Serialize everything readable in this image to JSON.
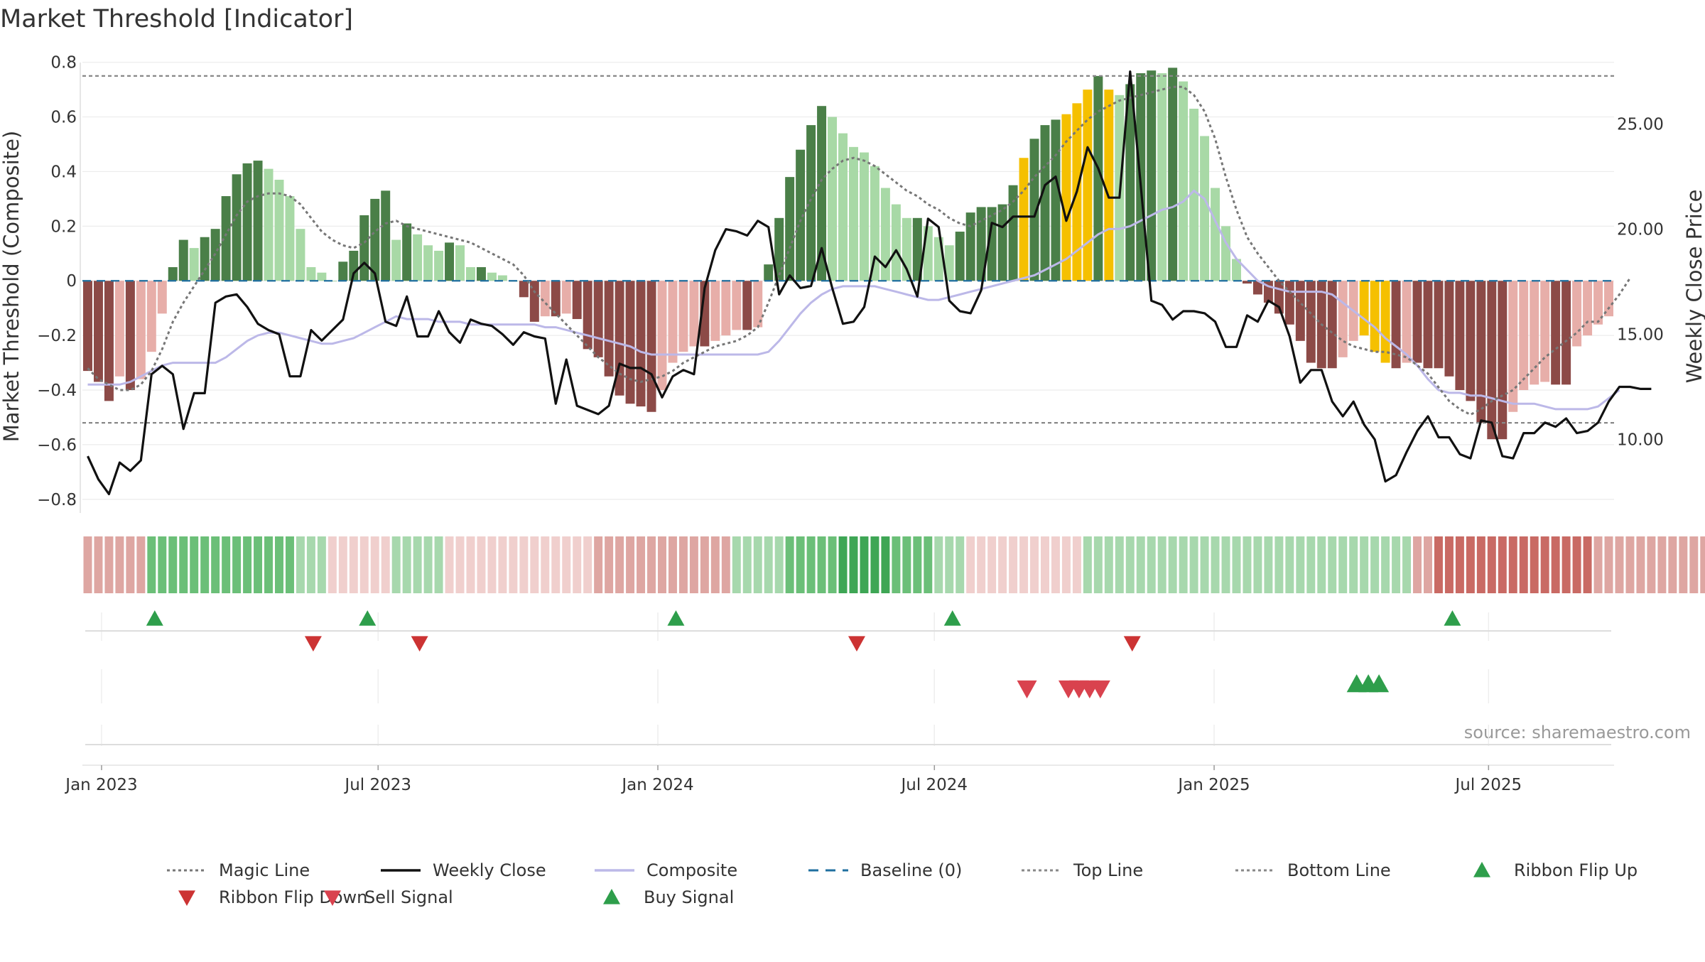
{
  "chart_data": {
    "type": "bar",
    "title": "Market Threshold [Indicator]",
    "source": "source: sharemaestro.com",
    "y_left": {
      "label": "Market Threshold (Composite)",
      "range": [
        -0.85,
        0.82
      ],
      "ticks": [
        0.8,
        0.6,
        0.4,
        0.2,
        0,
        -0.2,
        -0.4,
        -0.6,
        -0.8
      ],
      "tick_labels": [
        "0.8",
        "0.6",
        "0.4",
        "0.2",
        "0",
        "−0.2",
        "−0.4",
        "−0.6",
        "−0.8"
      ]
    },
    "y_right": {
      "label": "Weekly Close Price",
      "range": [
        6.5,
        28.2
      ],
      "ticks": [
        25,
        20,
        15,
        10
      ],
      "tick_labels": [
        "25.00",
        "20.00",
        "15.00",
        "10.00"
      ]
    },
    "x_ticks": [
      {
        "label": "Jan 2023",
        "week": 1.3
      },
      {
        "label": "Jul 2023",
        "week": 27.3
      },
      {
        "label": "Jan 2024",
        "week": 53.6
      },
      {
        "label": "Jul 2024",
        "week": 79.6
      },
      {
        "label": "Jan 2025",
        "week": 105.9
      },
      {
        "label": "Jul 2025",
        "week": 131.7
      }
    ],
    "week_count": 144,
    "top_line": 0.75,
    "bottom_line": -0.52,
    "colors": {
      "pos_strong": "#4a7f48",
      "pos_light": "#a8d9a6",
      "neg_strong": "#8c4a47",
      "neg_light": "#e7aea9",
      "extreme": "#f5c000",
      "close": "#111111",
      "magic": "#777777",
      "composite": "#bcb8e8",
      "baseline": "#1f6f9f",
      "ref": "#888888",
      "buy": "#2e9e4b",
      "sell": "#d9424e",
      "flip_up": "#2e9e4b",
      "flip_down": "#cc3333"
    },
    "composite_bars": [
      -0.33,
      -0.37,
      -0.44,
      -0.35,
      -0.4,
      -0.36,
      -0.26,
      -0.12,
      0.05,
      0.15,
      0.12,
      0.16,
      0.19,
      0.31,
      0.39,
      0.43,
      0.44,
      0.41,
      0.37,
      0.31,
      0.19,
      0.05,
      0.03,
      0.0,
      0.07,
      0.11,
      0.24,
      0.3,
      0.33,
      0.15,
      0.21,
      0.17,
      0.13,
      0.11,
      0.14,
      0.13,
      0.05,
      0.05,
      0.03,
      0.02,
      0.0,
      -0.06,
      -0.15,
      -0.13,
      -0.13,
      -0.12,
      -0.14,
      -0.25,
      -0.28,
      -0.35,
      -0.42,
      -0.45,
      -0.46,
      -0.48,
      -0.4,
      -0.3,
      -0.26,
      -0.24,
      -0.24,
      -0.22,
      -0.2,
      -0.18,
      -0.18,
      -0.17,
      0.06,
      0.23,
      0.38,
      0.48,
      0.57,
      0.64,
      0.6,
      0.54,
      0.49,
      0.47,
      0.42,
      0.34,
      0.28,
      0.23,
      0.23,
      0.2,
      0.16,
      0.13,
      0.18,
      0.25,
      0.27,
      0.27,
      0.28,
      0.35,
      0.45,
      0.52,
      0.57,
      0.59,
      0.61,
      0.65,
      0.7,
      0.75,
      0.7,
      0.68,
      0.72,
      0.76,
      0.77,
      0.76,
      0.78,
      0.73,
      0.63,
      0.53,
      0.34,
      0.2,
      0.08,
      -0.01,
      -0.05,
      -0.08,
      -0.12,
      -0.16,
      -0.22,
      -0.3,
      -0.32,
      -0.32,
      -0.28,
      -0.22,
      -0.2,
      -0.26,
      -0.3,
      -0.32,
      -0.3,
      -0.3,
      -0.32,
      -0.32,
      -0.35,
      -0.4,
      -0.44,
      -0.52,
      -0.58,
      -0.58,
      -0.48,
      -0.4,
      -0.38,
      -0.37,
      -0.38,
      -0.38,
      -0.24,
      -0.2,
      -0.16,
      -0.13
    ],
    "extreme_weeks": [
      88,
      92,
      93,
      94,
      96,
      120,
      121,
      122
    ],
    "magic_line": [
      -0.32,
      -0.36,
      -0.38,
      -0.4,
      -0.4,
      -0.38,
      -0.33,
      -0.25,
      -0.15,
      -0.08,
      -0.02,
      0.04,
      0.1,
      0.17,
      0.24,
      0.29,
      0.31,
      0.32,
      0.32,
      0.31,
      0.28,
      0.23,
      0.18,
      0.15,
      0.13,
      0.12,
      0.14,
      0.18,
      0.21,
      0.22,
      0.2,
      0.19,
      0.18,
      0.17,
      0.16,
      0.15,
      0.14,
      0.12,
      0.1,
      0.08,
      0.06,
      0.02,
      -0.04,
      -0.08,
      -0.12,
      -0.16,
      -0.2,
      -0.24,
      -0.28,
      -0.31,
      -0.34,
      -0.36,
      -0.37,
      -0.36,
      -0.35,
      -0.33,
      -0.3,
      -0.28,
      -0.26,
      -0.24,
      -0.23,
      -0.22,
      -0.2,
      -0.17,
      -0.08,
      0.02,
      0.12,
      0.22,
      0.3,
      0.37,
      0.41,
      0.44,
      0.45,
      0.44,
      0.42,
      0.39,
      0.36,
      0.33,
      0.31,
      0.28,
      0.26,
      0.23,
      0.21,
      0.2,
      0.22,
      0.24,
      0.26,
      0.29,
      0.33,
      0.38,
      0.42,
      0.46,
      0.51,
      0.55,
      0.59,
      0.62,
      0.64,
      0.66,
      0.67,
      0.68,
      0.69,
      0.7,
      0.71,
      0.71,
      0.68,
      0.62,
      0.52,
      0.38,
      0.26,
      0.16,
      0.1,
      0.05,
      0.0,
      -0.04,
      -0.08,
      -0.12,
      -0.16,
      -0.19,
      -0.22,
      -0.24,
      -0.25,
      -0.26,
      -0.26,
      -0.27,
      -0.28,
      -0.31,
      -0.34,
      -0.39,
      -0.44,
      -0.47,
      -0.49,
      -0.47,
      -0.44,
      -0.42,
      -0.4,
      -0.36,
      -0.32,
      -0.28,
      -0.25,
      -0.22,
      -0.19,
      -0.15,
      -0.15,
      -0.1,
      -0.05,
      0.01
    ],
    "composite_line": [
      -0.38,
      -0.38,
      -0.38,
      -0.38,
      -0.37,
      -0.35,
      -0.33,
      -0.31,
      -0.3,
      -0.3,
      -0.3,
      -0.3,
      -0.3,
      -0.28,
      -0.25,
      -0.22,
      -0.2,
      -0.19,
      -0.19,
      -0.2,
      -0.21,
      -0.22,
      -0.23,
      -0.23,
      -0.22,
      -0.21,
      -0.19,
      -0.17,
      -0.15,
      -0.13,
      -0.14,
      -0.14,
      -0.14,
      -0.15,
      -0.15,
      -0.15,
      -0.16,
      -0.16,
      -0.16,
      -0.16,
      -0.16,
      -0.16,
      -0.16,
      -0.17,
      -0.17,
      -0.18,
      -0.19,
      -0.2,
      -0.21,
      -0.22,
      -0.23,
      -0.24,
      -0.26,
      -0.27,
      -0.27,
      -0.27,
      -0.27,
      -0.27,
      -0.27,
      -0.27,
      -0.27,
      -0.27,
      -0.27,
      -0.27,
      -0.26,
      -0.22,
      -0.17,
      -0.12,
      -0.08,
      -0.05,
      -0.03,
      -0.02,
      -0.02,
      -0.02,
      -0.02,
      -0.03,
      -0.04,
      -0.05,
      -0.06,
      -0.07,
      -0.07,
      -0.06,
      -0.05,
      -0.04,
      -0.03,
      -0.02,
      -0.01,
      0.0,
      0.01,
      0.02,
      0.04,
      0.06,
      0.08,
      0.11,
      0.14,
      0.17,
      0.19,
      0.19,
      0.2,
      0.22,
      0.24,
      0.26,
      0.27,
      0.29,
      0.33,
      0.3,
      0.22,
      0.14,
      0.08,
      0.04,
      0.0,
      -0.02,
      -0.03,
      -0.04,
      -0.04,
      -0.04,
      -0.04,
      -0.05,
      -0.08,
      -0.11,
      -0.14,
      -0.17,
      -0.21,
      -0.24,
      -0.27,
      -0.31,
      -0.36,
      -0.4,
      -0.41,
      -0.41,
      -0.42,
      -0.42,
      -0.43,
      -0.44,
      -0.45,
      -0.45,
      -0.45,
      -0.46,
      -0.47,
      -0.47,
      -0.47,
      -0.47,
      -0.46,
      -0.43,
      -0.4
    ],
    "weekly_close": [
      9.2,
      8.1,
      7.4,
      8.9,
      8.5,
      9.0,
      13.1,
      13.5,
      13.1,
      10.5,
      12.2,
      12.2,
      16.5,
      16.8,
      16.9,
      16.3,
      15.5,
      15.2,
      15.0,
      13.0,
      13.0,
      15.2,
      14.7,
      15.2,
      15.7,
      17.9,
      18.4,
      17.9,
      15.6,
      15.4,
      16.8,
      14.9,
      14.9,
      16.1,
      15.1,
      14.6,
      15.7,
      15.5,
      15.4,
      15.0,
      14.5,
      15.1,
      14.9,
      14.8,
      11.7,
      13.8,
      11.6,
      11.4,
      11.2,
      11.6,
      13.6,
      13.4,
      13.4,
      13.1,
      12.0,
      13.0,
      13.3,
      13.1,
      17.2,
      19.0,
      20.0,
      19.9,
      19.7,
      20.4,
      20.1,
      16.9,
      17.8,
      17.2,
      17.3,
      19.1,
      17.2,
      15.5,
      15.6,
      16.3,
      18.7,
      18.2,
      19.0,
      18.1,
      16.8,
      20.5,
      20.1,
      16.6,
      16.1,
      16.0,
      17.1,
      20.3,
      20.1,
      20.6,
      20.6,
      20.6,
      22.1,
      22.5,
      20.4,
      21.8,
      23.9,
      22.9,
      21.5,
      21.5,
      27.5,
      22.1,
      16.6,
      16.4,
      15.7,
      16.1,
      16.1,
      16.0,
      15.6,
      14.4,
      14.4,
      15.9,
      15.6,
      16.6,
      16.3,
      14.9,
      12.7,
      13.3,
      13.3,
      11.8,
      11.1,
      11.8,
      10.7,
      10.0,
      8.0,
      8.3,
      9.4,
      10.4,
      11.1,
      10.1,
      10.1,
      9.3,
      9.1,
      10.9,
      10.8,
      9.2,
      9.1,
      10.3,
      10.3,
      10.8,
      10.6,
      11.0,
      10.3,
      10.4,
      10.8,
      11.8,
      12.5,
      12.5,
      12.4,
      12.4
    ],
    "ribbon_levels": [
      -2,
      -2,
      -2,
      -2,
      -2,
      -2,
      2,
      2,
      2,
      2,
      2,
      2,
      2,
      2,
      2,
      2,
      2,
      2,
      2,
      2,
      1,
      1,
      1,
      -1,
      -1,
      -1,
      -1,
      -1,
      -1,
      1,
      1,
      1,
      1,
      1,
      -1,
      -1,
      -1,
      -1,
      -1,
      -1,
      -1,
      -1,
      -1,
      -1,
      -1,
      -1,
      -1,
      -1,
      -2,
      -2,
      -2,
      -2,
      -2,
      -2,
      -2,
      -2,
      -2,
      -2,
      -2,
      -2,
      -2,
      1,
      1,
      1,
      1,
      1,
      2,
      2,
      2,
      2,
      2,
      3,
      3,
      3,
      3,
      3,
      2,
      2,
      2,
      2,
      1,
      1,
      1,
      -1,
      -1,
      -1,
      -1,
      -1,
      -1,
      -1,
      -1,
      -1,
      -1,
      -1,
      1,
      1,
      1,
      1,
      1,
      1,
      1,
      1,
      1,
      1,
      1,
      1,
      1,
      1,
      1,
      1,
      1,
      1,
      1,
      1,
      1,
      1,
      1,
      1,
      1,
      1,
      1,
      1,
      1,
      1,
      1,
      -2,
      -2,
      -3,
      -3,
      -3,
      -3,
      -3,
      -3,
      -3,
      -3,
      -3,
      -3,
      -3,
      -3,
      -3,
      -3,
      -3,
      -2,
      -2,
      -2,
      -2,
      -2,
      -2,
      -2,
      -2,
      -2,
      -2,
      -2,
      -2,
      -1,
      -1,
      -1,
      -1,
      -1,
      -1,
      1,
      1,
      1,
      1,
      1,
      1,
      1,
      1,
      1,
      1,
      1,
      1,
      1,
      1,
      1,
      1
    ],
    "ribbon_flip_up_weeks": [
      6.3,
      26.3,
      55.3,
      81.3,
      128.3
    ],
    "ribbon_flip_down_weeks": [
      21.2,
      31.2,
      72.3,
      98.2
    ],
    "buy_signal_weeks": [
      119.3,
      120.4,
      121.4
    ],
    "sell_signal_weeks": [
      88.3,
      92.2,
      93.2,
      94.2,
      95.2
    ],
    "legend": [
      {
        "label": "Magic Line",
        "kind": "dotted",
        "color": "#777777"
      },
      {
        "label": "Weekly Close",
        "kind": "line",
        "color": "#111111"
      },
      {
        "label": "Composite",
        "kind": "line",
        "color": "#bcb8e8"
      },
      {
        "label": "Baseline (0)",
        "kind": "dashed",
        "color": "#1f6f9f"
      },
      {
        "label": "Top Line",
        "kind": "dotted",
        "color": "#888888"
      },
      {
        "label": "Bottom Line",
        "kind": "dotted",
        "color": "#888888"
      },
      {
        "label": "Ribbon Flip Up",
        "kind": "tri-up",
        "color": "#2e9e4b"
      },
      {
        "label": "Ribbon Flip Down",
        "kind": "tri-down",
        "color": "#cc3333"
      },
      {
        "label": "Sell Signal",
        "kind": "tri-down",
        "color": "#d9424e"
      },
      {
        "label": "Buy Signal",
        "kind": "tri-up",
        "color": "#2e9e4b"
      }
    ]
  }
}
